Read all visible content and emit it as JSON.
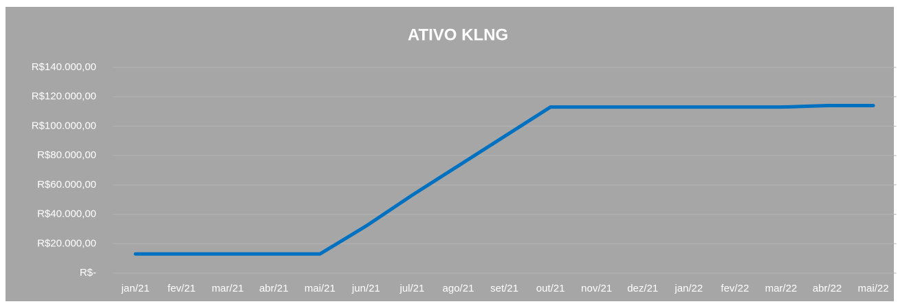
{
  "chart_data": {
    "type": "line",
    "title": "ATIVO KLNG",
    "categories": [
      "jan/21",
      "fev/21",
      "mar/21",
      "abr/21",
      "mai/21",
      "jun/21",
      "jul/21",
      "ago/21",
      "set/21",
      "out/21",
      "nov/21",
      "dez/21",
      "jan/22",
      "fev/22",
      "mar/22",
      "abr/22",
      "mai/22"
    ],
    "series": [
      {
        "name": "ATIVO KLNG",
        "color": "#0070c0",
        "values": [
          13000,
          13000,
          13000,
          13000,
          13000,
          32000,
          53000,
          73000,
          93000,
          113000,
          113000,
          113000,
          113000,
          113000,
          113000,
          114000,
          114000
        ]
      }
    ],
    "ylim": [
      0,
      140000
    ],
    "yticks": [
      {
        "value": 0,
        "label": "R$-"
      },
      {
        "value": 20000,
        "label": "R$20.000,00"
      },
      {
        "value": 40000,
        "label": "R$40.000,00"
      },
      {
        "value": 60000,
        "label": "R$60.000,00"
      },
      {
        "value": 80000,
        "label": "R$80.000,00"
      },
      {
        "value": 100000,
        "label": "R$100.000,00"
      },
      {
        "value": 120000,
        "label": "R$120.000,00"
      },
      {
        "value": 140000,
        "label": "R$140.000,00"
      }
    ],
    "grid": true
  }
}
